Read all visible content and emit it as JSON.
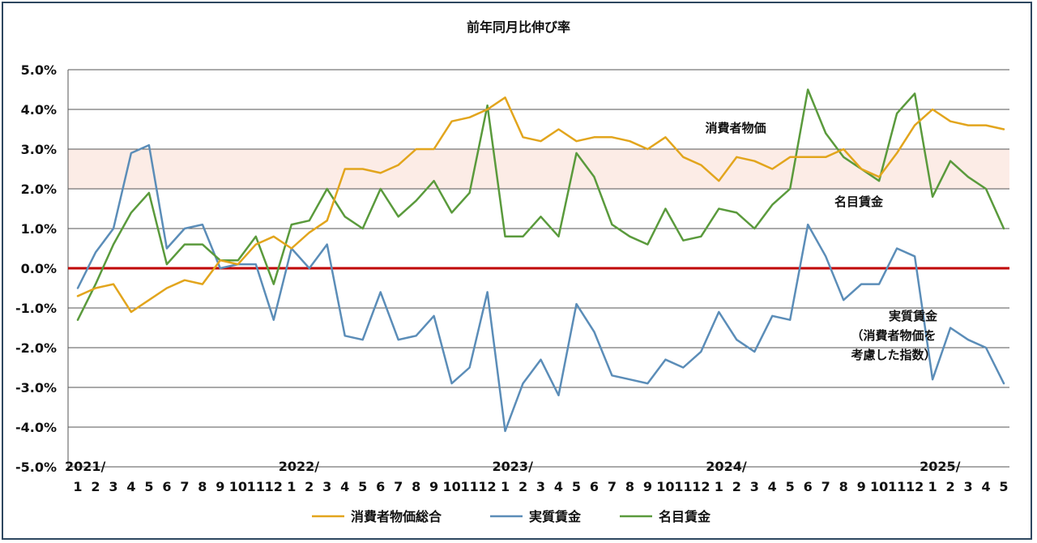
{
  "chart_data": {
    "type": "line",
    "title": "前年同月比伸び率",
    "ylim": [
      -5.0,
      5.0
    ],
    "yticks": [
      "5.0%",
      "4.0%",
      "3.0%",
      "2.0%",
      "1.0%",
      "0.0%",
      "-1.0%",
      "-2.0%",
      "-3.0%",
      "-4.0%",
      "-5.0%"
    ],
    "x": [
      "1",
      "2",
      "3",
      "4",
      "5",
      "6",
      "7",
      "8",
      "9",
      "10",
      "11",
      "12",
      "1",
      "2",
      "3",
      "4",
      "5",
      "6",
      "7",
      "8",
      "9",
      "10",
      "11",
      "12",
      "1",
      "2",
      "3",
      "4",
      "5",
      "6",
      "7",
      "8",
      "9",
      "10",
      "11",
      "12",
      "1",
      "2",
      "3",
      "4",
      "5",
      "6",
      "7",
      "8",
      "9",
      "10",
      "11",
      "12",
      "1",
      "2",
      "3",
      "4",
      "5"
    ],
    "year_labels": [
      {
        "label": "2021/",
        "index": 0
      },
      {
        "label": "2022/",
        "index": 12
      },
      {
        "label": "2023/",
        "index": 24
      },
      {
        "label": "2024/",
        "index": 36
      },
      {
        "label": "2025/",
        "index": 48
      }
    ],
    "highlight_band": [
      2.0,
      3.0
    ],
    "zero_line_color": "#c00000",
    "series": [
      {
        "name": "消費者物価総合",
        "color": "#e2a51d",
        "values": [
          -0.7,
          -0.5,
          -0.4,
          -1.1,
          -0.8,
          -0.5,
          -0.3,
          -0.4,
          0.2,
          0.1,
          0.6,
          0.8,
          0.5,
          0.9,
          1.2,
          2.5,
          2.5,
          2.4,
          2.6,
          3.0,
          3.0,
          3.7,
          3.8,
          4.0,
          4.3,
          3.3,
          3.2,
          3.5,
          3.2,
          3.3,
          3.3,
          3.2,
          3.0,
          3.3,
          2.8,
          2.6,
          2.2,
          2.8,
          2.7,
          2.5,
          2.8,
          2.8,
          2.8,
          3.0,
          2.5,
          2.3,
          2.9,
          3.6,
          4.0,
          3.7,
          3.6,
          3.6,
          3.5
        ]
      },
      {
        "name": "実質賃金",
        "color": "#5b8db8",
        "values": [
          -0.5,
          0.4,
          1.0,
          2.9,
          3.1,
          0.5,
          1.0,
          1.1,
          0.0,
          0.1,
          0.1,
          -1.3,
          0.5,
          0.0,
          0.6,
          -1.7,
          -1.8,
          -0.6,
          -1.8,
          -1.7,
          -1.2,
          -2.9,
          -2.5,
          -0.6,
          -4.1,
          -2.9,
          -2.3,
          -3.2,
          -0.9,
          -1.6,
          -2.7,
          -2.8,
          -2.9,
          -2.3,
          -2.5,
          -2.1,
          -1.1,
          -1.8,
          -2.1,
          -1.2,
          -1.3,
          1.1,
          0.3,
          -0.8,
          -0.4,
          -0.4,
          0.5,
          0.3,
          -2.8,
          -1.5,
          -1.8,
          -2.0,
          -2.9
        ]
      },
      {
        "name": "名目賃金",
        "color": "#5a9a3c",
        "values": [
          -1.3,
          -0.4,
          0.6,
          1.4,
          1.9,
          0.1,
          0.6,
          0.6,
          0.2,
          0.2,
          0.8,
          -0.4,
          1.1,
          1.2,
          2.0,
          1.3,
          1.0,
          2.0,
          1.3,
          1.7,
          2.2,
          1.4,
          1.9,
          4.1,
          0.8,
          0.8,
          1.3,
          0.8,
          2.9,
          2.3,
          1.1,
          0.8,
          0.6,
          1.5,
          0.7,
          0.8,
          1.5,
          1.4,
          1.0,
          1.6,
          2.0,
          4.5,
          3.4,
          2.8,
          2.5,
          2.2,
          3.9,
          4.4,
          1.8,
          2.7,
          2.3,
          2.0,
          1.0
        ]
      }
    ],
    "annotations": {
      "cpi": "消費者物価",
      "nominal": "名目賃金",
      "real_line1": "実質賃金",
      "real_line2": "（消費者物価を",
      "real_line3": "考慮した指数）"
    },
    "legend": [
      "消費者物価総合",
      "実質賃金",
      "名目賃金"
    ],
    "legend_position": "bottom",
    "grid": true
  }
}
